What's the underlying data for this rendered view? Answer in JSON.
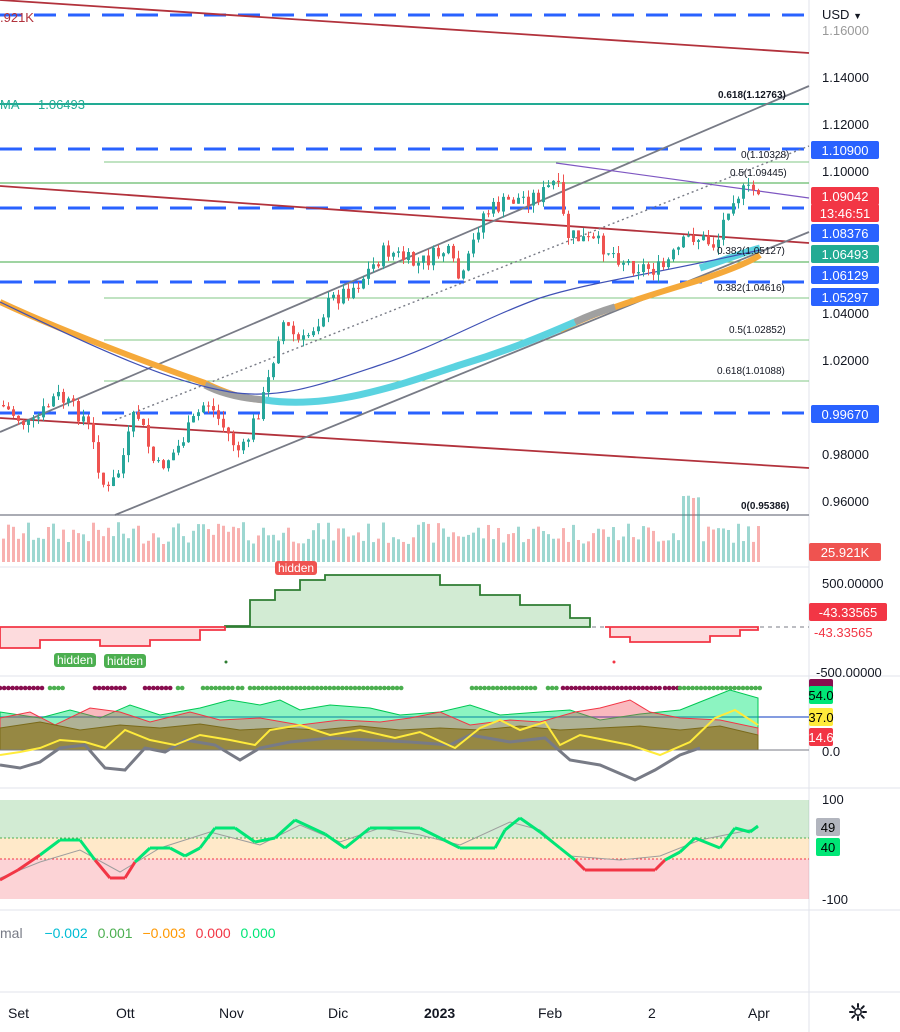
{
  "currency_selector": {
    "label": "USD",
    "icon": "chevron-down-icon"
  },
  "top_left": {
    "volume_label": ".921K",
    "ma_label": "MA",
    "ma_value": "1.06493"
  },
  "price_axis": [
    "1.16000",
    "1.14000",
    "1.12000",
    "1.10000",
    "1.04000",
    "1.02000",
    "0.98000",
    "0.96000"
  ],
  "price_badges": [
    {
      "value": "1.10900",
      "color": "#2962ff"
    },
    {
      "value": "1.09042",
      "color": "#f23645"
    },
    {
      "value": "13:46:51",
      "color": "#f23645"
    },
    {
      "value": "1.08376",
      "color": "#2962ff"
    },
    {
      "value": "1.06493",
      "color": "#22ab94"
    },
    {
      "value": "1.06129",
      "color": "#2962ff"
    },
    {
      "value": "1.05297",
      "color": "#2962ff"
    },
    {
      "value": "0.99670",
      "color": "#2962ff"
    }
  ],
  "fib_labels": [
    "0.618(1.12763)",
    "0(1.10328)",
    "0.5(1.09445)",
    "0.382(1.05127)",
    "0.382(1.04616)",
    "0.5(1.02852)",
    "0.618(1.01088)",
    "0(0.95386)"
  ],
  "volume_badge": "25.921K",
  "indicator1": {
    "axis_top": "500.00000",
    "axis_bottom": "-500.00000",
    "value1": "-43.33565",
    "value2": "-43.33565",
    "tag_top": "hidden",
    "tag_bottom_1": "hidden",
    "tag_bottom_2": "hidden"
  },
  "indicator2": {
    "value_top": "54.0",
    "value_mid": "37.0",
    "value_low": "14.6",
    "axis_zero": "0.0"
  },
  "indicator3": {
    "axis_top": "100",
    "axis_bottom": "-100",
    "value1": "49",
    "value2": "40"
  },
  "legend": {
    "label": "mal",
    "values": [
      {
        "text": "−0.002",
        "color": "#00bcd4"
      },
      {
        "text": "0.001",
        "color": "#4caf50"
      },
      {
        "text": "−0.003",
        "color": "#ff9800"
      },
      {
        "text": "0.000",
        "color": "#f23645"
      },
      {
        "text": "0.000",
        "color": "#00e676"
      }
    ]
  },
  "time_axis": [
    "Set",
    "Ott",
    "Nov",
    "Dic",
    "2023",
    "Feb",
    "2",
    "Apr"
  ],
  "settings_icon": "gear-icon",
  "colors": {
    "bull": "#26a69a",
    "bear": "#ef5350",
    "blue_dash": "#2962ff",
    "channel": "#787b86",
    "red_trend": "#b2323c"
  }
}
